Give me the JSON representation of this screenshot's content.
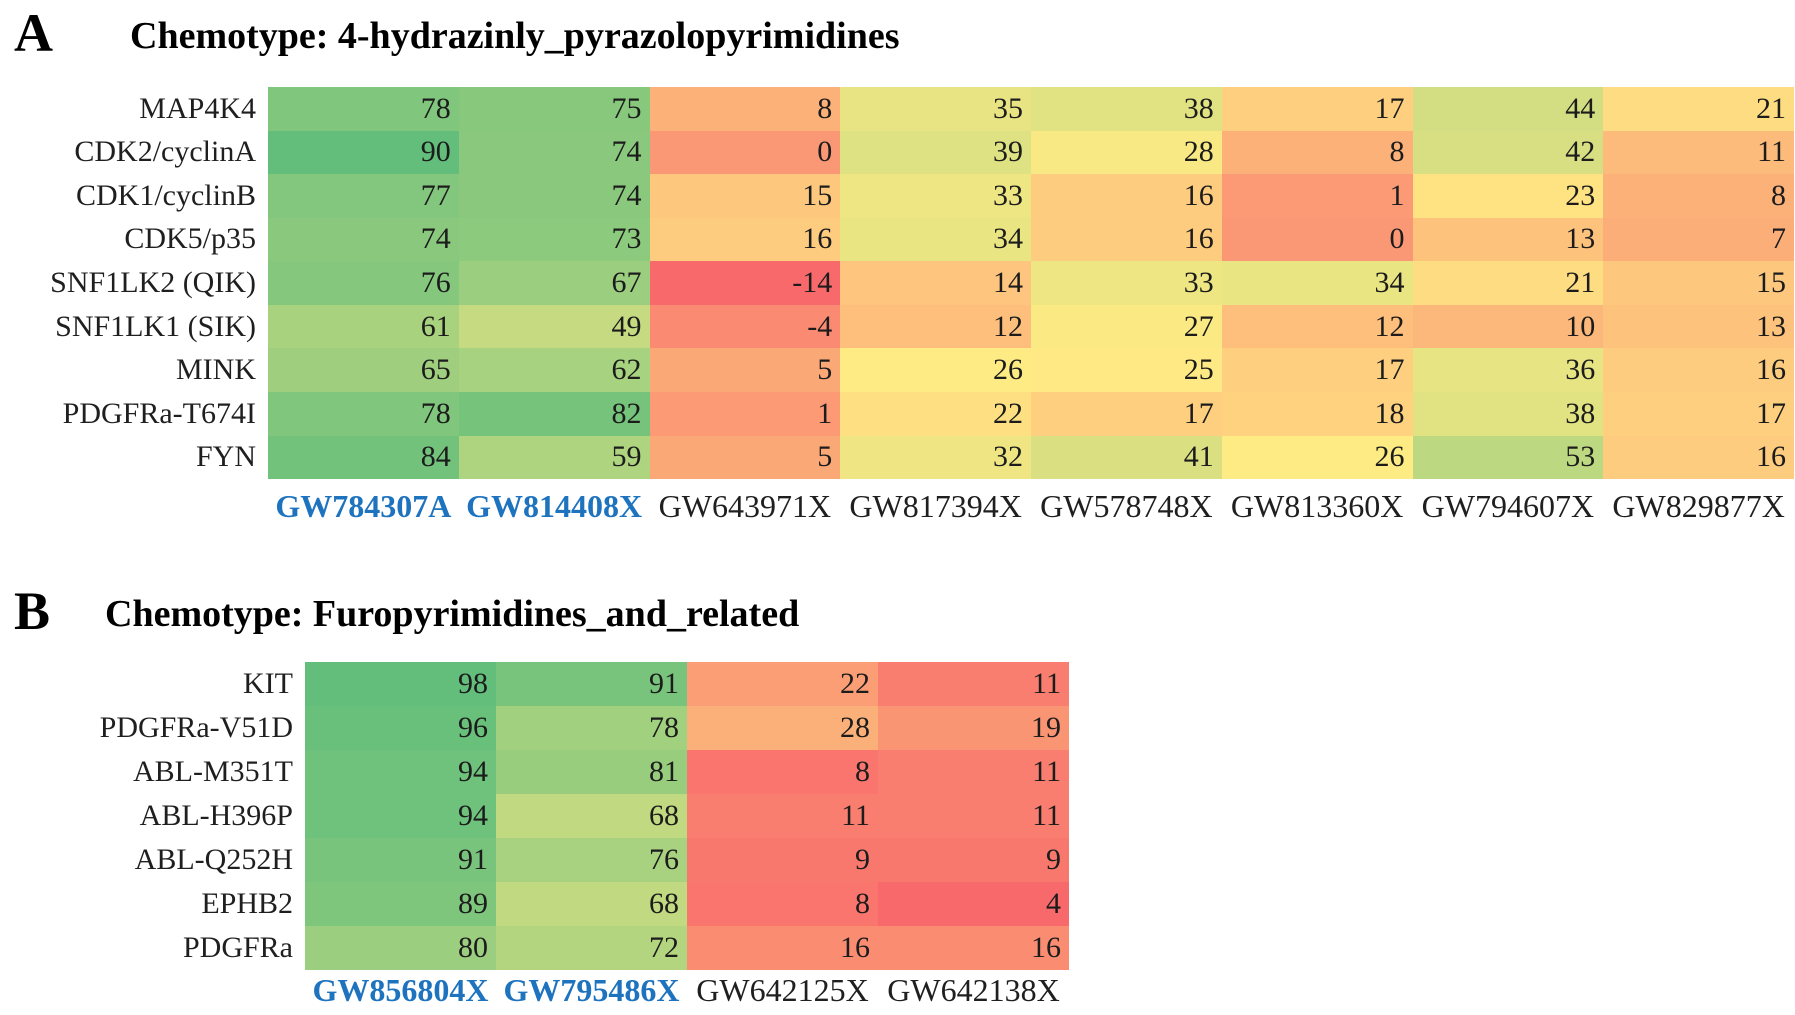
{
  "styles": {
    "highlight_color": "#1E73BE",
    "label_color": "#1f1f1f",
    "value_color": "#1c1c1c",
    "background": "#ffffff"
  },
  "chart_data": [
    {
      "type": "heatmap",
      "panel_label": "A",
      "title": "Chemotype: 4-hydrazinly_pyrazolopyrimidines",
      "rows": [
        "MAP4K4",
        "CDK2/cyclinA",
        "CDK1/cyclinB",
        "CDK5/p35",
        "SNF1LK2 (QIK)",
        "SNF1LK1 (SIK)",
        "MINK",
        "PDGFRa-T674I",
        "FYN"
      ],
      "columns": [
        "GW784307A",
        "GW814408X",
        "GW643971X",
        "GW817394X",
        "GW578748X",
        "GW813360X",
        "GW794607X",
        "GW829877X"
      ],
      "highlighted_columns": [
        0,
        1
      ],
      "values": [
        [
          78,
          75,
          8,
          35,
          38,
          17,
          44,
          21
        ],
        [
          90,
          74,
          0,
          39,
          28,
          8,
          42,
          11
        ],
        [
          77,
          74,
          15,
          33,
          16,
          1,
          23,
          8
        ],
        [
          74,
          73,
          16,
          34,
          16,
          0,
          13,
          7
        ],
        [
          76,
          67,
          -14,
          14,
          33,
          34,
          21,
          15
        ],
        [
          61,
          49,
          -4,
          12,
          27,
          12,
          10,
          13
        ],
        [
          65,
          62,
          5,
          26,
          25,
          17,
          36,
          16
        ],
        [
          78,
          82,
          1,
          22,
          17,
          18,
          38,
          17
        ],
        [
          84,
          59,
          5,
          32,
          41,
          26,
          53,
          16
        ]
      ],
      "colormap": {
        "low": "#F8696B",
        "mid": "#FFEB84",
        "high": "#63BE7B",
        "midpoint": "median"
      }
    },
    {
      "type": "heatmap",
      "panel_label": "B",
      "title": "Chemotype: Furopyrimidines_and_related",
      "rows": [
        "KIT",
        "PDGFRa-V51D",
        "ABL-M351T",
        "ABL-H396P",
        "ABL-Q252H",
        "EPHB2",
        "PDGFRa"
      ],
      "columns": [
        "GW856804X",
        "GW795486X",
        "GW642125X",
        "GW642138X"
      ],
      "highlighted_columns": [
        0,
        1
      ],
      "values": [
        [
          98,
          91,
          22,
          11
        ],
        [
          96,
          78,
          28,
          19
        ],
        [
          94,
          81,
          8,
          11
        ],
        [
          94,
          68,
          11,
          11
        ],
        [
          91,
          76,
          9,
          9
        ],
        [
          89,
          68,
          8,
          4
        ],
        [
          80,
          72,
          16,
          16
        ]
      ],
      "colormap": {
        "low": "#F8696B",
        "mid": "#FFEB84",
        "high": "#63BE7B",
        "midpoint": "median"
      }
    }
  ]
}
